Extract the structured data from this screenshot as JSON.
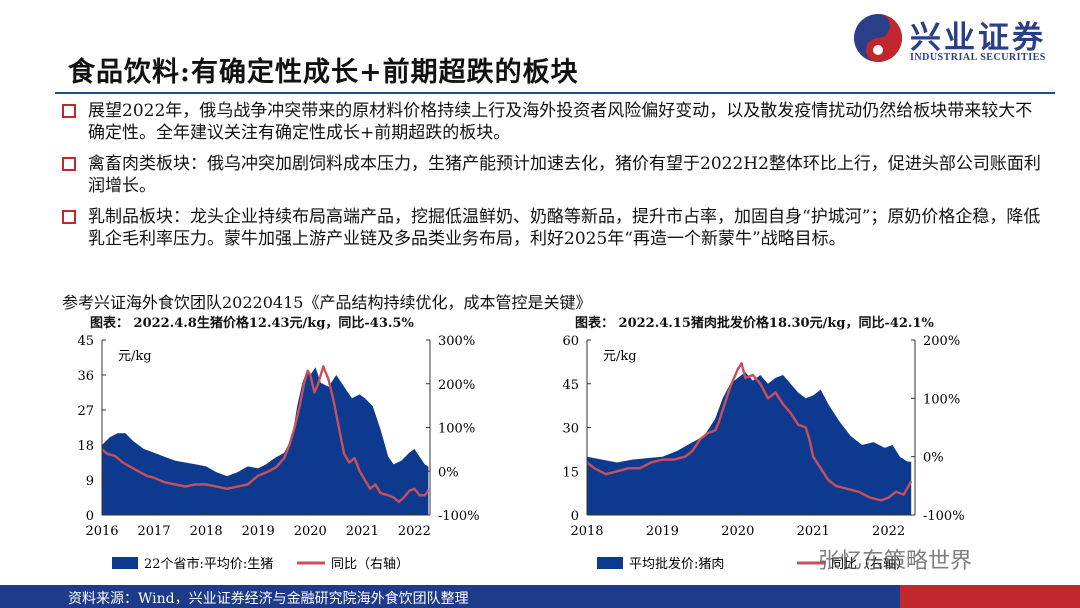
{
  "header": {
    "title": "食品饮料:有确定性成长+前期超跌的板块",
    "logo_text": "兴业证券",
    "logo_sub": "INDUSTRIAL SECURITIES"
  },
  "bullets": [
    {
      "text": "展望2022年，俄乌战争冲突带来的原材料价格持续上行及海外投资者风险偏好变动，以及散发疫情扰动仍然给板块带来较大不确定性。全年建议关注有确定性成长+前期超跌的板块。"
    },
    {
      "text": "禽畜肉类板块：俄乌冲突加剧饲料成本压力，生猪产能预计加速去化，猪价有望于2022H2整体环比上行，促进头部公司账面利润增长。"
    },
    {
      "text": "乳制品板块：龙头企业持续布局高端产品，挖掘低温鲜奶、奶酪等新品，提升市占率，加固自身“护城河”；原奶价格企稳，降低乳企毛利率压力。蒙牛加强上游产业链及多品类业务布局，利好2025年“再造一个新蒙牛”战略目标。"
    }
  ],
  "reference": "参考兴证海外食饮团队20220415《产品结构持续优化，成本管控是关键》",
  "footer": {
    "source": "资料来源：Wind，兴业证券经济与金融研究院海外食饮团队整理"
  },
  "watermark": "张忆东策略世界",
  "colors": {
    "area": "#0d3a8e",
    "line": "#c8505a",
    "accent_red": "#c0282d",
    "navy": "#1e3a8a"
  },
  "chart_data": [
    {
      "type": "area",
      "title": "图表：  2022.4.8生猪价格12.43元/kg，同比-43.5%",
      "unit_label": "元/kg",
      "x_ticks": [
        "2016",
        "2017",
        "2018",
        "2019",
        "2020",
        "2021",
        "2022"
      ],
      "x_range": [
        2016,
        2022.3
      ],
      "ylim": [
        0,
        45
      ],
      "y_ticks": [
        "0",
        "9",
        "18",
        "27",
        "36",
        "45"
      ],
      "y2lim": [
        -100,
        300
      ],
      "y2_ticks": [
        "-100%",
        "0%",
        "100%",
        "200%",
        "300%"
      ],
      "series": [
        {
          "name": "22个省市:平均价:生猪",
          "axis": "left",
          "kind": "area",
          "x": [
            2016.0,
            2016.15,
            2016.3,
            2016.45,
            2016.6,
            2016.8,
            2017.0,
            2017.2,
            2017.4,
            2017.6,
            2017.8,
            2018.0,
            2018.2,
            2018.4,
            2018.6,
            2018.8,
            2019.0,
            2019.15,
            2019.3,
            2019.5,
            2019.65,
            2019.75,
            2019.85,
            2019.93,
            2020.0,
            2020.1,
            2020.2,
            2020.35,
            2020.5,
            2020.65,
            2020.8,
            2020.95,
            2021.05,
            2021.2,
            2021.35,
            2021.5,
            2021.6,
            2021.75,
            2021.9,
            2022.0,
            2022.1,
            2022.2,
            2022.27
          ],
          "values": [
            18,
            20,
            21,
            21,
            19,
            17,
            16,
            15,
            14,
            13.5,
            13,
            12.5,
            11,
            10,
            11,
            12.5,
            12,
            13,
            14.5,
            16,
            20,
            28,
            34,
            37,
            36,
            38,
            34,
            33,
            36,
            33,
            30,
            31,
            30,
            28,
            22,
            15,
            13,
            14,
            16,
            17,
            15,
            13,
            12.4
          ]
        },
        {
          "name": "同比（右轴）",
          "axis": "right",
          "kind": "line",
          "x": [
            2016.0,
            2016.1,
            2016.25,
            2016.4,
            2016.55,
            2016.7,
            2016.85,
            2017.0,
            2017.2,
            2017.4,
            2017.6,
            2017.8,
            2018.0,
            2018.2,
            2018.4,
            2018.6,
            2018.8,
            2019.0,
            2019.2,
            2019.35,
            2019.5,
            2019.6,
            2019.7,
            2019.8,
            2019.88,
            2019.95,
            2020.0,
            2020.08,
            2020.15,
            2020.25,
            2020.35,
            2020.45,
            2020.55,
            2020.65,
            2020.75,
            2020.85,
            2020.95,
            2021.05,
            2021.15,
            2021.25,
            2021.35,
            2021.5,
            2021.6,
            2021.7,
            2021.8,
            2021.9,
            2022.0,
            2022.1,
            2022.2,
            2022.27
          ],
          "values": [
            50,
            40,
            35,
            20,
            10,
            0,
            -10,
            -15,
            -25,
            -30,
            -35,
            -30,
            -30,
            -35,
            -40,
            -35,
            -30,
            -10,
            0,
            10,
            30,
            60,
            100,
            150,
            200,
            230,
            220,
            180,
            200,
            240,
            210,
            160,
            100,
            40,
            20,
            30,
            0,
            -20,
            -40,
            -30,
            -50,
            -55,
            -60,
            -70,
            -60,
            -45,
            -40,
            -55,
            -55,
            -43.5
          ]
        }
      ]
    },
    {
      "type": "area",
      "title": "图表：  2022.4.15猪肉批发价格18.30元/kg，同比-42.1%",
      "unit_label": "元/kg",
      "x_ticks": [
        "2018",
        "2019",
        "2020",
        "2021",
        "2022"
      ],
      "x_range": [
        2018,
        2022.35
      ],
      "ylim": [
        0,
        60
      ],
      "y_ticks": [
        "0",
        "15",
        "30",
        "45",
        "60"
      ],
      "y2lim": [
        -100,
        200
      ],
      "y2_ticks": [
        "-100%",
        "0%",
        "100%",
        "200%"
      ],
      "series": [
        {
          "name": "平均批发价:猪肉",
          "axis": "left",
          "kind": "area",
          "x": [
            2018.0,
            2018.2,
            2018.4,
            2018.6,
            2018.8,
            2019.0,
            2019.2,
            2019.4,
            2019.55,
            2019.7,
            2019.8,
            2019.9,
            2020.0,
            2020.1,
            2020.2,
            2020.3,
            2020.4,
            2020.5,
            2020.6,
            2020.7,
            2020.8,
            2020.9,
            2021.0,
            2021.1,
            2021.2,
            2021.35,
            2021.5,
            2021.65,
            2021.8,
            2021.95,
            2022.05,
            2022.15,
            2022.25,
            2022.3
          ],
          "values": [
            20,
            19,
            18,
            19,
            19.5,
            20,
            22,
            25,
            27,
            33,
            40,
            45,
            47,
            49,
            46,
            48,
            45,
            47,
            48,
            45,
            42,
            40,
            41,
            43,
            38,
            32,
            27,
            24,
            25,
            23,
            24,
            20,
            18.3,
            18.3
          ]
        },
        {
          "name": "同比（右轴）",
          "axis": "right",
          "kind": "line",
          "x": [
            2018.0,
            2018.1,
            2018.25,
            2018.4,
            2018.55,
            2018.7,
            2018.85,
            2019.0,
            2019.15,
            2019.3,
            2019.4,
            2019.5,
            2019.6,
            2019.7,
            2019.75,
            2019.8,
            2019.9,
            2020.0,
            2020.05,
            2020.1,
            2020.2,
            2020.3,
            2020.4,
            2020.5,
            2020.6,
            2020.7,
            2020.8,
            2020.9,
            2020.95,
            2021.0,
            2021.1,
            2021.2,
            2021.3,
            2021.45,
            2021.6,
            2021.75,
            2021.9,
            2022.0,
            2022.1,
            2022.2,
            2022.3
          ],
          "values": [
            -10,
            -20,
            -30,
            -25,
            -20,
            -20,
            -10,
            -5,
            -5,
            0,
            10,
            30,
            40,
            45,
            60,
            80,
            120,
            150,
            160,
            135,
            140,
            125,
            100,
            110,
            90,
            75,
            55,
            50,
            30,
            0,
            -20,
            -40,
            -50,
            -55,
            -60,
            -70,
            -75,
            -70,
            -60,
            -65,
            -42.1
          ]
        }
      ]
    }
  ],
  "legends": [
    {
      "area": "22个省市:平均价:生猪",
      "line": "同比（右轴）"
    },
    {
      "area": "平均批发价:猪肉",
      "line": "同比（右轴）"
    }
  ]
}
